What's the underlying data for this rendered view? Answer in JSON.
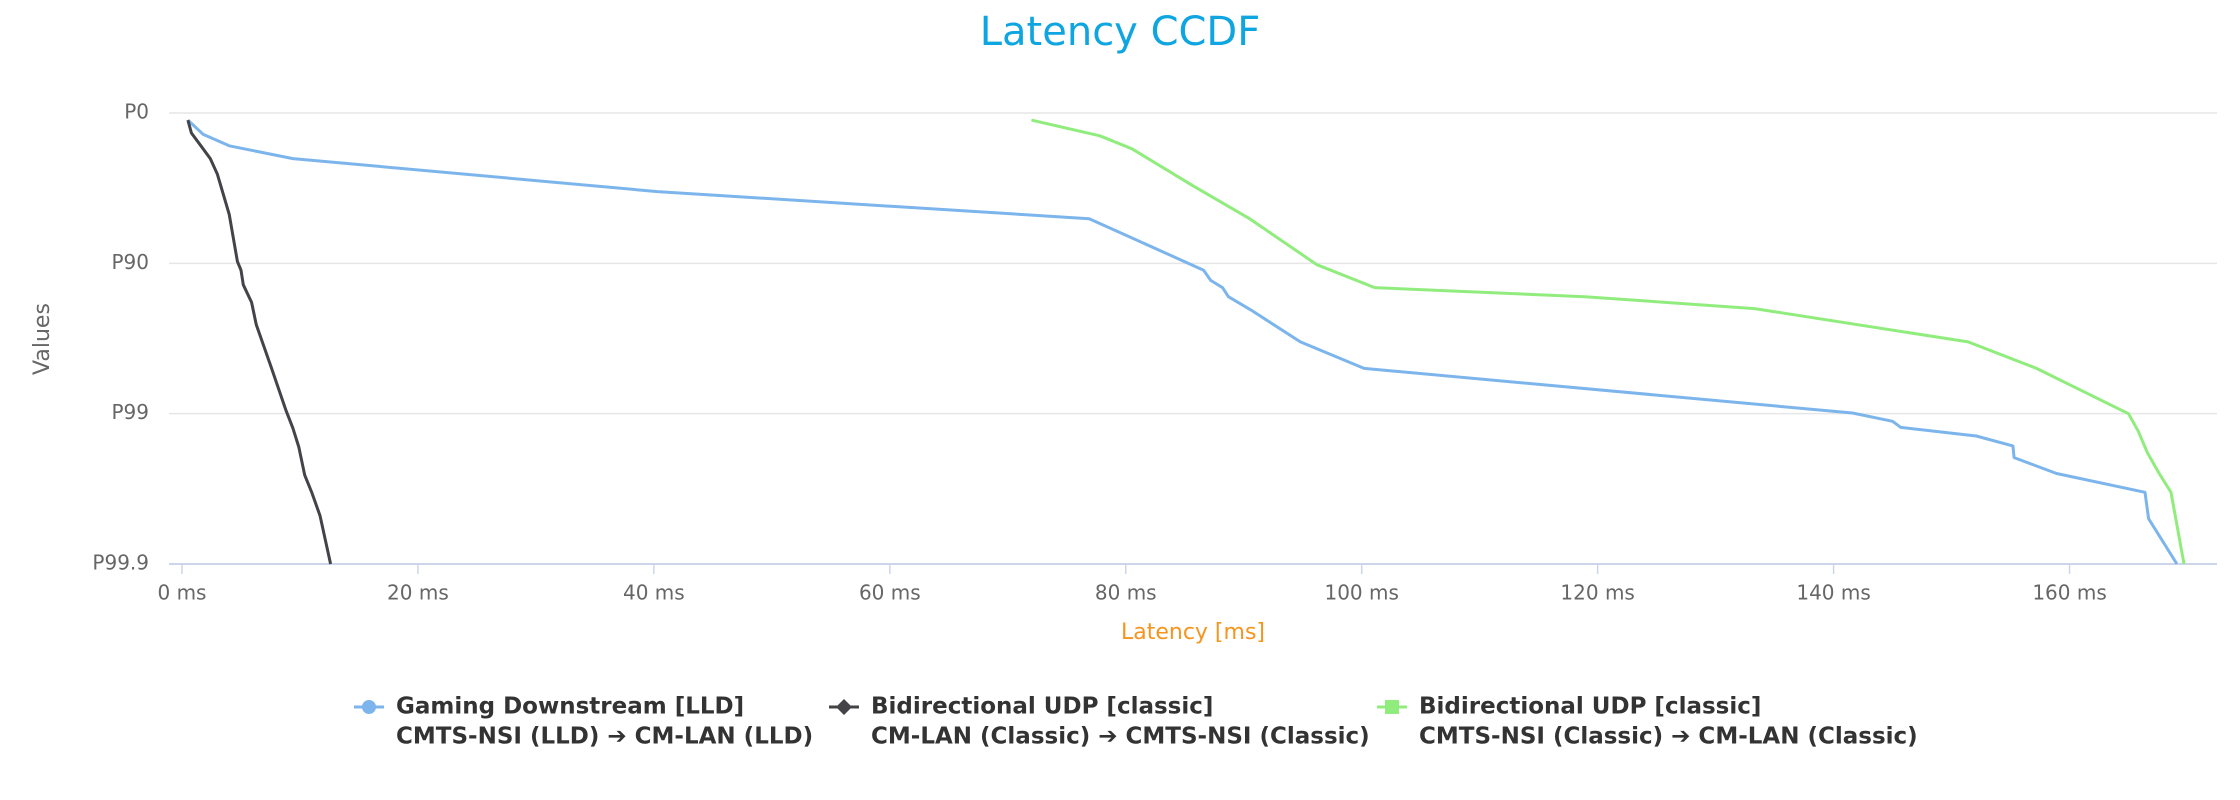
{
  "chart_data": {
    "type": "line",
    "title": "Latency CCDF",
    "xlabel": "Latency [ms]",
    "ylabel": "Values",
    "yscale": "percentile-log",
    "xlim": [
      -1.1,
      172.5
    ],
    "xticks": [
      {
        "value": 0,
        "label": "0 ms"
      },
      {
        "value": 20,
        "label": "20 ms"
      },
      {
        "value": 40,
        "label": "40 ms"
      },
      {
        "value": 60,
        "label": "60 ms"
      },
      {
        "value": 80,
        "label": "80 ms"
      },
      {
        "value": 100,
        "label": "100 ms"
      },
      {
        "value": 120,
        "label": "120 ms"
      },
      {
        "value": 140,
        "label": "140 ms"
      },
      {
        "value": 160,
        "label": "160 ms"
      }
    ],
    "ylim": [
      0,
      99.9
    ],
    "yticks": [
      {
        "value": 0,
        "label": "P0"
      },
      {
        "value": 90,
        "label": "P90"
      },
      {
        "value": 99,
        "label": "P99"
      },
      {
        "value": 99.9,
        "label": "P99.9"
      }
    ],
    "grid": true,
    "series": [
      {
        "name": "Gaming Downstream [LLD]",
        "direction": "CMTS-NSI (LLD) ➔ CM-LAN (LLD)",
        "color": "#7cb5ec",
        "marker": "circle",
        "x": [
          0.5,
          1.8,
          4.0,
          9.4,
          40.3,
          76.9,
          86.6,
          87.2,
          88.2,
          88.7,
          90.6,
          94.8,
          100.2,
          141.6,
          145.0,
          145.7,
          152.1,
          155.2,
          155.3,
          158.9,
          166.4,
          166.7,
          169.1
        ],
        "values": [
          10.3,
          27.9,
          39.5,
          50.3,
          70.0,
          80.2,
          91.0,
          92.3,
          93.1,
          94.0,
          95.1,
          97.0,
          98.0,
          98.99,
          99.11,
          99.19,
          99.29,
          99.39,
          99.49,
          99.6,
          99.7,
          99.8,
          99.9
        ]
      },
      {
        "name": "Bidirectional UDP [classic]",
        "direction": "CM-LAN (Classic) ➔ CMTS-NSI (Classic)",
        "color": "#434348",
        "marker": "diamond",
        "x": [
          0.5,
          0.8,
          1.6,
          2.4,
          3.0,
          4.0,
          4.7,
          5.0,
          5.2,
          5.9,
          6.3,
          7.6,
          8.8,
          9.4,
          9.9,
          10.4,
          11.0,
          11.7,
          12.6
        ],
        "values": [
          10.3,
          26.4,
          39.5,
          50.3,
          60.9,
          78.8,
          89.7,
          91.0,
          92.8,
          94.5,
          96.1,
          98.0,
          98.94,
          99.2,
          99.4,
          99.61,
          99.7,
          99.79,
          99.9
        ]
      },
      {
        "name": "Bidirectional UDP [classic]",
        "direction": "CMTS-NSI (Classic) ➔ CM-LAN (Classic)",
        "color": "#90ed7d",
        "marker": "square",
        "x": [
          72.0,
          77.8,
          80.5,
          85.7,
          90.5,
          96.2,
          101.1,
          118.9,
          133.3,
          151.4,
          157.2,
          165.0,
          165.8,
          166.6,
          167.6,
          168.6,
          169.7
        ],
        "values": [
          10.3,
          29.5,
          42.1,
          67.2,
          80.2,
          90.2,
          93.1,
          94.0,
          95.0,
          97.0,
          98.0,
          99.0,
          99.23,
          99.45,
          99.6,
          99.7,
          99.9
        ]
      }
    ]
  }
}
